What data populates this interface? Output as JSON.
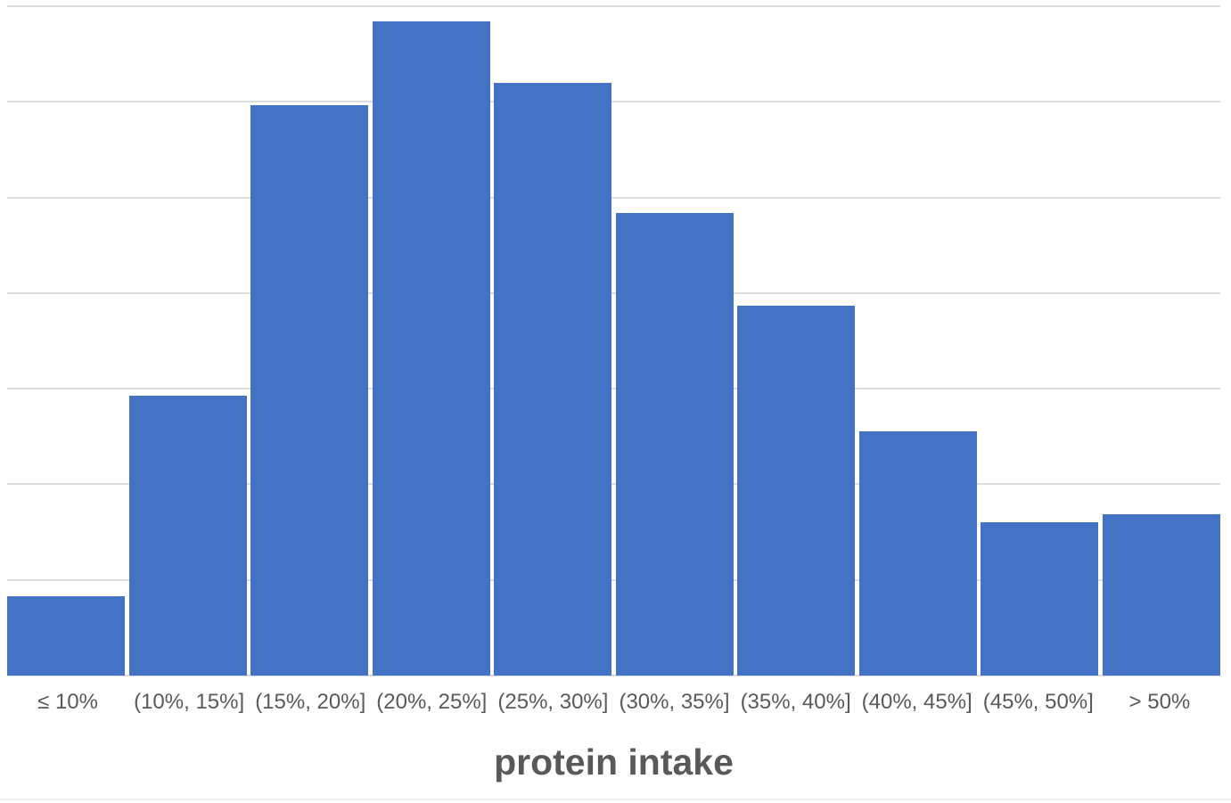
{
  "chart_data": {
    "type": "bar",
    "subtype": "histogram",
    "title": "",
    "xlabel": "protein intake",
    "ylabel": "",
    "categories": [
      "≤ 10%",
      "(10%, 15%]",
      "(15%, 20%]",
      "(20%, 25%]",
      "(25%, 30%]",
      "(30%, 35%]",
      "(35%, 40%]",
      "(40%, 45%]",
      "(45%, 50%]",
      "> 50%"
    ],
    "values": [
      8.3,
      29.3,
      59.7,
      68.4,
      62.0,
      48.4,
      38.7,
      25.5,
      16.0,
      16.9
    ],
    "ylim": [
      0,
      70
    ],
    "gridline_step": 10,
    "grid": "horizontal",
    "legend": "none",
    "y_axis_tick_labels_visible": false,
    "colors": {
      "bar_fill": "#4472C4",
      "gridline": "#dddddd",
      "axis_label_text": "#595959",
      "axis_title_text": "#595959",
      "background": "#ffffff",
      "bottom_border": "#eef0f2"
    }
  }
}
